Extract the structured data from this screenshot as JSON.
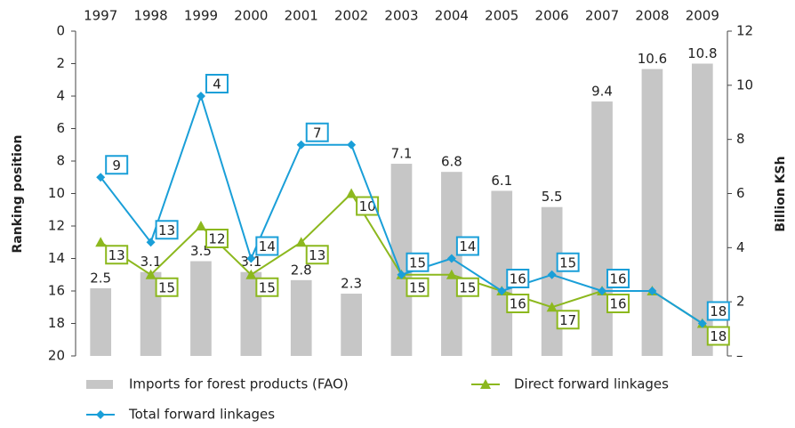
{
  "chart_data": {
    "type": "combo",
    "y_label": "Ranking position",
    "y2_label": "Billion KSh",
    "categories": [
      "1997",
      "1998",
      "1999",
      "2000",
      "2001",
      "2002",
      "2003",
      "2004",
      "2005",
      "2006",
      "2007",
      "2008",
      "2009"
    ],
    "ylim": [
      0,
      20
    ],
    "y_inverted": true,
    "yticks": [
      0,
      2,
      4,
      6,
      8,
      10,
      12,
      14,
      16,
      18,
      20
    ],
    "y2lim": [
      0,
      12
    ],
    "y2ticks": [
      {
        "value": 0,
        "label": "–"
      },
      2,
      4,
      6,
      8,
      10,
      12
    ],
    "grid": false,
    "legend": "bottom",
    "series": [
      {
        "name": "Imports for forest products (FAO)",
        "type": "bar",
        "axis": "y2",
        "color": "#c6c6c6",
        "values": [
          2.5,
          3.1,
          3.5,
          3.1,
          2.8,
          2.3,
          7.1,
          6.8,
          6.1,
          5.5,
          9.4,
          10.6,
          10.8
        ]
      },
      {
        "name": "Direct forward linkages",
        "type": "line",
        "marker": "triangle",
        "color": "#8cb81e",
        "values": [
          13,
          15,
          12,
          15,
          13,
          10,
          15,
          15,
          16,
          17,
          16,
          16,
          18
        ],
        "value_labels": [
          13,
          15,
          12,
          15,
          13,
          10,
          15,
          15,
          16,
          17,
          16,
          null,
          18
        ]
      },
      {
        "name": "Total forward linkages",
        "type": "line",
        "marker": "diamond",
        "color": "#1a9fd8",
        "values": [
          9,
          13,
          4,
          14,
          7,
          7,
          15,
          14,
          16,
          15,
          16,
          16,
          18
        ],
        "value_labels": [
          9,
          13,
          4,
          14,
          7,
          null,
          15,
          14,
          16,
          15,
          16,
          null,
          18
        ]
      }
    ]
  }
}
